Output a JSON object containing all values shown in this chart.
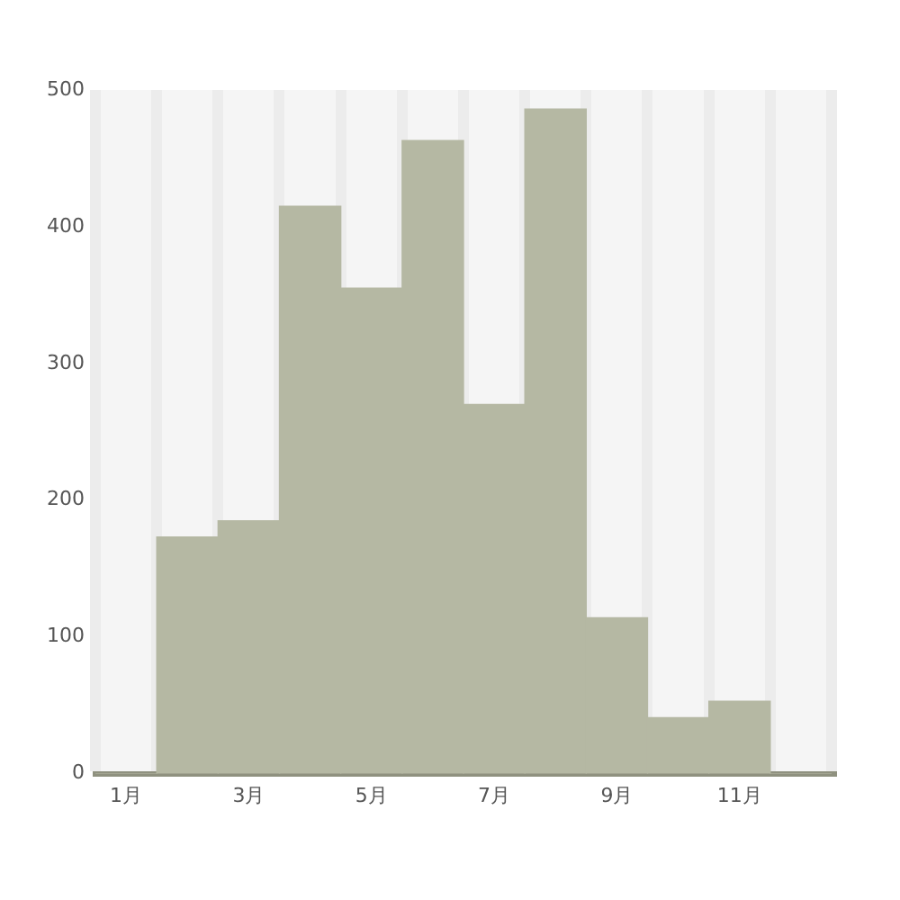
{
  "chart_data": {
    "type": "bar",
    "categories": [
      "1月",
      null,
      "3月",
      null,
      "5月",
      null,
      "7月",
      null,
      "9月",
      null,
      "11月",
      null
    ],
    "values": [
      0,
      173,
      185,
      415,
      355,
      463,
      270,
      486,
      114,
      41,
      53,
      0
    ],
    "color": "#b5b8a3",
    "ylim": [
      0,
      500
    ],
    "yticks": [
      0,
      100,
      200,
      300,
      400,
      500
    ],
    "grid": "x",
    "legend": false
  }
}
